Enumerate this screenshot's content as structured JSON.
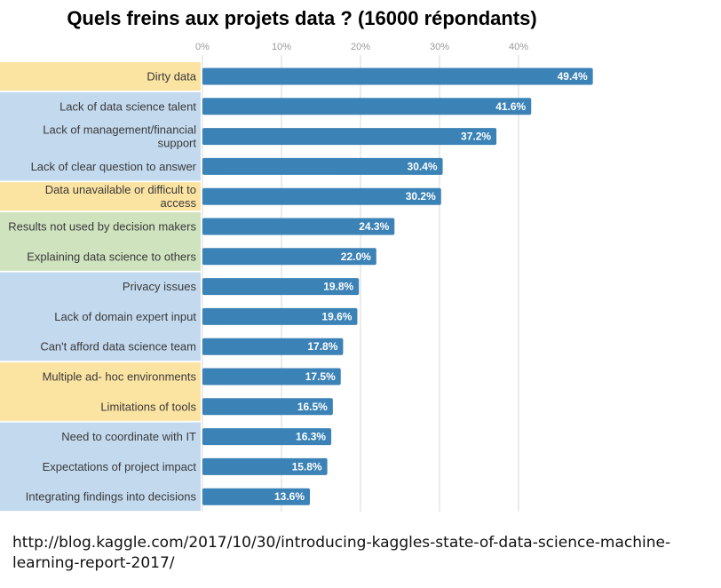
{
  "title": "Quels freins aux projets data ? (16000 répondants)",
  "source_line1": "http://blog.kaggle.com/2017/10/30/introducing-kaggles-state-of-data-science-machine-",
  "source_line2": "learning-report-2017/",
  "colors": {
    "bar": "#3b82b6",
    "yellow_band": "#fbe3a2",
    "blue_band": "#c3d9ee",
    "green_band": "#cfe3bf",
    "grid": "#d9d9d9"
  },
  "chart_data": {
    "type": "bar",
    "orientation": "horizontal",
    "xticks": [
      "0%",
      "10%",
      "20%",
      "30%",
      "40%"
    ],
    "xlim": [
      0,
      50
    ],
    "grid": true,
    "categories": [
      [
        "Dirty data"
      ],
      [
        "Lack of data science talent"
      ],
      [
        "Lack of management/financial",
        "support"
      ],
      [
        "Lack of clear question to answer"
      ],
      [
        "Data unavailable or difficult to",
        "access"
      ],
      [
        "Results not used by decision makers"
      ],
      [
        "Explaining data science to others"
      ],
      [
        "Privacy issues"
      ],
      [
        "Lack of domain expert input"
      ],
      [
        "Can't afford data science team"
      ],
      [
        "Multiple ad- hoc environments"
      ],
      [
        "Limitations of tools"
      ],
      [
        "Need to coordinate with IT"
      ],
      [
        "Expectations of project impact"
      ],
      [
        "Integrating findings into decisions"
      ]
    ],
    "values": [
      49.4,
      41.6,
      37.2,
      30.4,
      30.2,
      24.3,
      22.0,
      19.8,
      19.6,
      17.8,
      17.5,
      16.5,
      16.3,
      15.8,
      13.6
    ],
    "value_labels": [
      "49.4%",
      "41.6%",
      "37.2%",
      "30.4%",
      "30.2%",
      "24.3%",
      "22.0%",
      "19.8%",
      "19.6%",
      "17.8%",
      "17.5%",
      "16.5%",
      "16.3%",
      "15.8%",
      "13.6%"
    ],
    "category_highlight": [
      "yellow",
      "blue",
      "blue",
      "blue",
      "yellow",
      "green",
      "green",
      "blue",
      "blue",
      "blue",
      "yellow",
      "yellow",
      "blue",
      "blue",
      "blue"
    ]
  }
}
